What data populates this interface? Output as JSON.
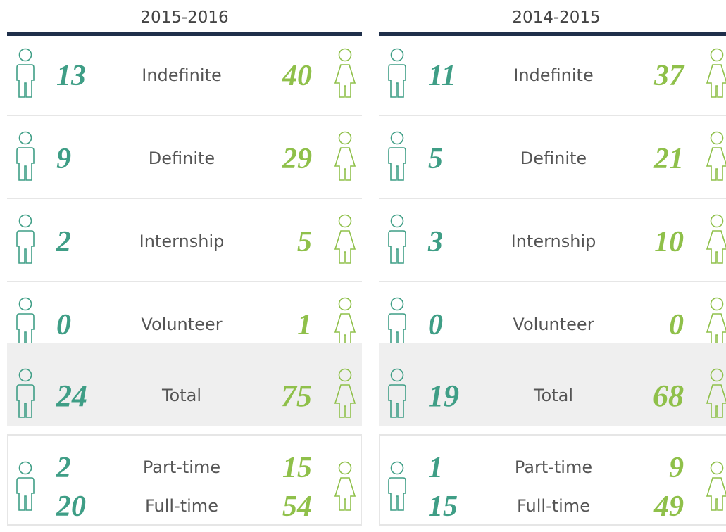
{
  "panels": [
    {
      "title": "2015-2016",
      "rows": [
        {
          "label": "Indefinite",
          "men": 13,
          "women": 40
        },
        {
          "label": "Definite",
          "men": 9,
          "women": 29
        },
        {
          "label": "Internship",
          "men": 2,
          "women": 5
        },
        {
          "label": "Volunteer",
          "men": 0,
          "women": 1
        }
      ],
      "total": {
        "label": "Total",
        "men": 24,
        "women": 75
      },
      "hours": [
        {
          "label": "Part-time",
          "men": 2,
          "women": 15
        },
        {
          "label": "Full-time",
          "men": 20,
          "women": 54
        }
      ]
    },
    {
      "title": "2014-2015",
      "rows": [
        {
          "label": "Indefinite",
          "men": 11,
          "women": 37
        },
        {
          "label": "Definite",
          "men": 5,
          "women": 21
        },
        {
          "label": "Internship",
          "men": 3,
          "women": 10
        },
        {
          "label": "Volunteer",
          "men": 0,
          "women": 0
        }
      ],
      "total": {
        "label": "Total",
        "men": 19,
        "women": 68
      },
      "hours": [
        {
          "label": "Part-time",
          "men": 1,
          "women": 9
        },
        {
          "label": "Full-time",
          "men": 15,
          "women": 49
        }
      ]
    }
  ]
}
